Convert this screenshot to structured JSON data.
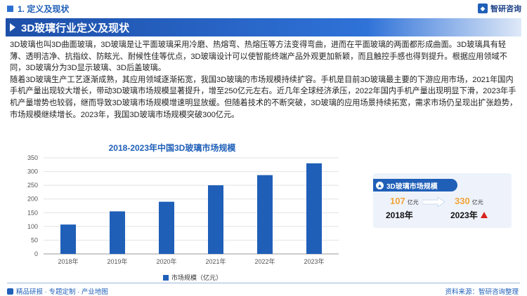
{
  "header": {
    "section": "1. 定义及现状",
    "logo_text": "智研咨询"
  },
  "title": "3D玻璃行业定义及现状",
  "paragraphs": [
    "3D玻璃也叫3D曲面玻璃，3D玻璃是让平面玻璃采用冷磨、热熔弯、热熔压等方法变得弯曲，进而在平面玻璃的两面都形成曲面。3D玻璃具有轻薄、透明洁净、抗指纹、防眩光、耐候性佳等优点，3D玻璃设计可以使智能终端产品外观更加新颖，而且触控手感也得到提升。根据应用领域不同，3D玻璃分为3D显示玻璃、3D后盖玻璃。",
    "随着3D玻璃生产工艺逐渐成熟，其应用领域逐渐拓宽，我国3D玻璃的市场规模持续扩容。手机是目前3D玻璃最主要的下游应用市场，2021年国内手机产量出现较大增长，带动3D玻璃市场规模显著提升，增至250亿元左右。近几年全球经济承压，2022年国内手机产量出现明显下滑，2023年手机产量增势也较弱，继而导致3D玻璃市场规模增速明显放缓。但随着技术的不断突破，3D玻璃的应用场景持续拓宽，需求市场仍呈现出扩张趋势，市场规模继续增长。2023年，我国3D玻璃市场规模突破300亿元。"
  ],
  "chart_data": {
    "type": "bar",
    "title": "2018-2023年中国3D玻璃市场规模",
    "categories": [
      "2018年",
      "2019年",
      "2020年",
      "2021年",
      "2022年",
      "2023年"
    ],
    "series": [
      {
        "name": "市场规模（亿元）",
        "values": [
          107,
          155,
          190,
          250,
          287,
          330
        ]
      }
    ],
    "ylim": [
      0,
      350
    ],
    "yticks": [
      0,
      50,
      100,
      150,
      200,
      250,
      300,
      350
    ],
    "grid": true,
    "legend": "bottom",
    "bar_color": "#1f5fb8"
  },
  "card": {
    "title": "3D玻璃市场规模",
    "from_value": "107",
    "from_unit": "亿元",
    "from_year": "2018年",
    "to_value": "330",
    "to_unit": "亿元",
    "to_year": "2023年"
  },
  "footer": {
    "left": "精品研报 · 专题定制 · 产业地图",
    "right": "资料来源：智研咨询整理"
  },
  "colors": {
    "accent": "#1f5fb8",
    "orange": "#f0a43a",
    "up_red": "#d9221c"
  }
}
